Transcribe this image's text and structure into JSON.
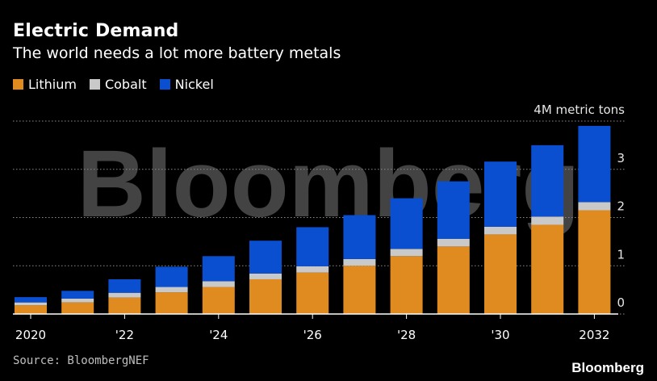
{
  "header": {
    "title": "Electric Demand",
    "subtitle": "The world needs a lot more battery metals"
  },
  "legend": [
    {
      "label": "Lithium",
      "color": "#e08b20"
    },
    {
      "label": "Cobalt",
      "color": "#c9c9c9"
    },
    {
      "label": "Nickel",
      "color": "#0a4fd0"
    }
  ],
  "footer": {
    "source": "Source: BloombergNEF",
    "brand": "Bloomberg"
  },
  "watermark": "Bloomberg",
  "chart_data": {
    "type": "bar",
    "stacked": true,
    "categories": [
      "2020",
      "2021",
      "2022",
      "2023",
      "2024",
      "2025",
      "2026",
      "2027",
      "2028",
      "2029",
      "2030",
      "2031",
      "2032"
    ],
    "x_tick_labels": [
      {
        "index": 0,
        "label": "2020"
      },
      {
        "index": 2,
        "label": "'22"
      },
      {
        "index": 4,
        "label": "'24"
      },
      {
        "index": 6,
        "label": "'26"
      },
      {
        "index": 8,
        "label": "'28"
      },
      {
        "index": 10,
        "label": "'30"
      },
      {
        "index": 12,
        "label": "2032"
      }
    ],
    "series": [
      {
        "name": "Lithium",
        "color": "#e08b20",
        "values": [
          0.18,
          0.24,
          0.34,
          0.45,
          0.56,
          0.72,
          0.86,
          1.0,
          1.2,
          1.4,
          1.65,
          1.85,
          2.15
        ]
      },
      {
        "name": "Cobalt",
        "color": "#c9c9c9",
        "values": [
          0.06,
          0.08,
          0.1,
          0.11,
          0.12,
          0.12,
          0.13,
          0.14,
          0.15,
          0.16,
          0.16,
          0.17,
          0.17
        ]
      },
      {
        "name": "Nickel",
        "color": "#0a4fd0",
        "values": [
          0.11,
          0.16,
          0.28,
          0.42,
          0.52,
          0.68,
          0.81,
          0.91,
          1.05,
          1.19,
          1.35,
          1.48,
          1.58
        ]
      }
    ],
    "y_ticks": [
      {
        "value": 0,
        "label": "0"
      },
      {
        "value": 1,
        "label": "1"
      },
      {
        "value": 2,
        "label": "2"
      },
      {
        "value": 3,
        "label": "3"
      },
      {
        "value": 4,
        "label": "4M metric tons"
      }
    ],
    "ylim": [
      0,
      4
    ],
    "grid": "dotted horizontal",
    "xlabel": "",
    "ylabel": ""
  }
}
